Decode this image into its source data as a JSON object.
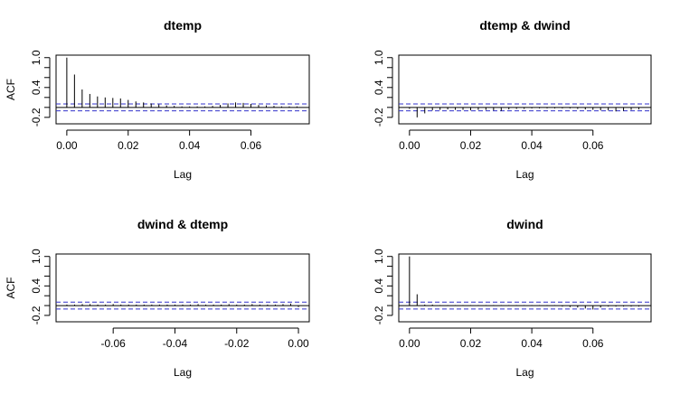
{
  "chart_data": [
    {
      "type": "bar",
      "subtype": "acf",
      "title": "dtemp",
      "xlabel": "Lag",
      "ylabel": "ACF",
      "xlim": [
        -0.0035,
        0.079
      ],
      "ylim": [
        -0.33,
        1.05
      ],
      "xticks": [
        0.0,
        0.02,
        0.04,
        0.06
      ],
      "xtick_labels": [
        "0.00",
        "0.02",
        "0.04",
        "0.06"
      ],
      "yticks": [
        -0.2,
        0.4,
        1.0
      ],
      "ytick_labels": [
        "-0.2",
        "0.4",
        "1.0"
      ],
      "ci": 0.07,
      "x": [
        0.0,
        0.0025,
        0.005,
        0.0075,
        0.01,
        0.0125,
        0.015,
        0.0175,
        0.02,
        0.0225,
        0.025,
        0.0275,
        0.03,
        0.0325,
        0.035,
        0.0375,
        0.04,
        0.0425,
        0.045,
        0.0475,
        0.05,
        0.0525,
        0.055,
        0.0575,
        0.06,
        0.0625,
        0.065,
        0.0675,
        0.07,
        0.0725,
        0.075
      ],
      "values": [
        1.0,
        0.66,
        0.36,
        0.27,
        0.22,
        0.2,
        0.19,
        0.18,
        0.15,
        0.12,
        0.1,
        0.08,
        0.06,
        0.04,
        0.03,
        0.02,
        0.02,
        0.02,
        0.02,
        0.03,
        0.05,
        0.08,
        0.1,
        0.09,
        0.07,
        0.05,
        0.04,
        0.03,
        0.02,
        0.02,
        0.02
      ]
    },
    {
      "type": "bar",
      "subtype": "acf",
      "title": "dtemp & dwind",
      "xlabel": "Lag",
      "ylabel": "",
      "xlim": [
        -0.0035,
        0.079
      ],
      "ylim": [
        -0.33,
        1.05
      ],
      "xticks": [
        0.0,
        0.02,
        0.04,
        0.06
      ],
      "xtick_labels": [
        "0.00",
        "0.02",
        "0.04",
        "0.06"
      ],
      "yticks": [
        -0.2,
        0.4,
        1.0
      ],
      "ytick_labels": [
        "-0.2",
        "0.4",
        "1.0"
      ],
      "ci": 0.07,
      "x": [
        0.0,
        0.0025,
        0.005,
        0.0075,
        0.01,
        0.0125,
        0.015,
        0.0175,
        0.02,
        0.0225,
        0.025,
        0.0275,
        0.03,
        0.0325,
        0.035,
        0.0375,
        0.04,
        0.0425,
        0.045,
        0.0475,
        0.05,
        0.0525,
        0.055,
        0.0575,
        0.06,
        0.0625,
        0.065,
        0.0675,
        0.07,
        0.0725,
        0.075
      ],
      "values": [
        -0.03,
        -0.2,
        -0.12,
        -0.06,
        -0.05,
        -0.04,
        -0.05,
        -0.05,
        -0.06,
        -0.05,
        -0.05,
        -0.06,
        -0.07,
        -0.04,
        -0.03,
        -0.03,
        -0.02,
        -0.02,
        -0.02,
        -0.02,
        -0.02,
        -0.02,
        -0.03,
        -0.04,
        -0.05,
        -0.06,
        -0.06,
        -0.08,
        -0.07,
        -0.05,
        -0.04
      ]
    },
    {
      "type": "bar",
      "subtype": "acf",
      "title": "dwind & dtemp",
      "xlabel": "Lag",
      "ylabel": "ACF",
      "xlim": [
        -0.0785,
        0.0035
      ],
      "ylim": [
        -0.33,
        1.05
      ],
      "xticks": [
        -0.06,
        -0.04,
        -0.02,
        0.0
      ],
      "xtick_labels": [
        "-0.06",
        "-0.04",
        "-0.02",
        "0.00"
      ],
      "yticks": [
        -0.2,
        0.4,
        1.0
      ],
      "ytick_labels": [
        "-0.2",
        "0.4",
        "1.0"
      ],
      "ci": 0.07,
      "x": [
        -0.075,
        -0.0725,
        -0.07,
        -0.0675,
        -0.065,
        -0.0625,
        -0.06,
        -0.0575,
        -0.055,
        -0.0525,
        -0.05,
        -0.0475,
        -0.045,
        -0.0425,
        -0.04,
        -0.0375,
        -0.035,
        -0.0325,
        -0.03,
        -0.0275,
        -0.025,
        -0.0225,
        -0.02,
        -0.0175,
        -0.015,
        -0.0125,
        -0.01,
        -0.0075,
        -0.005,
        -0.0025,
        0.0
      ],
      "values": [
        0.02,
        0.02,
        0.03,
        0.03,
        0.02,
        0.02,
        0.03,
        0.02,
        0.02,
        0.02,
        0.02,
        0.02,
        0.02,
        0.02,
        0.02,
        0.02,
        0.02,
        0.03,
        0.02,
        0.02,
        0.02,
        0.03,
        0.02,
        0.02,
        0.03,
        0.02,
        0.02,
        0.02,
        0.03,
        0.04,
        -0.03
      ]
    },
    {
      "type": "bar",
      "subtype": "acf",
      "title": "dwind",
      "xlabel": "Lag",
      "ylabel": "",
      "xlim": [
        -0.0035,
        0.079
      ],
      "ylim": [
        -0.33,
        1.05
      ],
      "xticks": [
        0.0,
        0.02,
        0.04,
        0.06
      ],
      "xtick_labels": [
        "0.00",
        "0.02",
        "0.04",
        "0.06"
      ],
      "yticks": [
        -0.2,
        0.4,
        1.0
      ],
      "ytick_labels": [
        "-0.2",
        "0.4",
        "1.0"
      ],
      "ci": 0.07,
      "x": [
        0.0,
        0.0025,
        0.005,
        0.0075,
        0.01,
        0.0125,
        0.015,
        0.0175,
        0.02,
        0.0225,
        0.025,
        0.0275,
        0.03,
        0.0325,
        0.035,
        0.0375,
        0.04,
        0.0425,
        0.045,
        0.0475,
        0.05,
        0.0525,
        0.055,
        0.0575,
        0.06,
        0.0625,
        0.065,
        0.0675,
        0.07,
        0.0725,
        0.075
      ],
      "values": [
        1.0,
        0.23,
        0.02,
        0.02,
        0.01,
        0.01,
        0.01,
        0.01,
        0.01,
        0.01,
        0.01,
        0.01,
        0.01,
        0.01,
        0.01,
        0.01,
        0.01,
        0.01,
        0.01,
        0.01,
        -0.02,
        -0.03,
        -0.04,
        -0.06,
        -0.08,
        -0.04,
        -0.02,
        -0.02,
        -0.02,
        -0.02,
        -0.02
      ]
    }
  ],
  "style": {
    "ci_color": "#3333cc",
    "line_color": "#000000",
    "zero_color": "#000000"
  }
}
